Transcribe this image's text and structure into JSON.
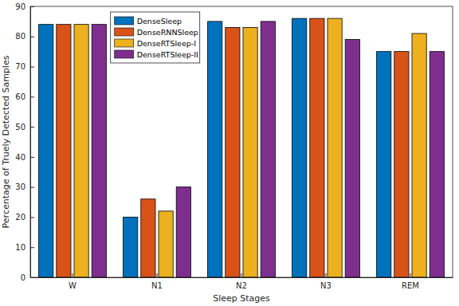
{
  "chart_data": {
    "type": "bar",
    "x_label": "Sleep Stages",
    "y_label": "Percentage of Truely Detected Samples",
    "categories": [
      "W",
      "N1",
      "N2",
      "N3",
      "REM"
    ],
    "series": [
      {
        "name": "DenseSleep",
        "color": "#0072bd",
        "values": [
          84,
          20,
          85,
          86,
          75
        ]
      },
      {
        "name": "DenseRNNSleep",
        "color": "#d95319",
        "values": [
          84,
          26,
          83,
          86,
          75
        ]
      },
      {
        "name": "DenseRTSleep-I",
        "color": "#edb120",
        "values": [
          84,
          22,
          83,
          86,
          81
        ]
      },
      {
        "name": "DenseRTSleep-II",
        "color": "#7e2f8e",
        "values": [
          84,
          30,
          85,
          79,
          75
        ]
      }
    ],
    "ylim": [
      0,
      90
    ],
    "yticks": [
      0,
      10,
      20,
      30,
      40,
      50,
      60,
      70,
      80,
      90
    ],
    "grid": false,
    "legend": "top-left"
  }
}
